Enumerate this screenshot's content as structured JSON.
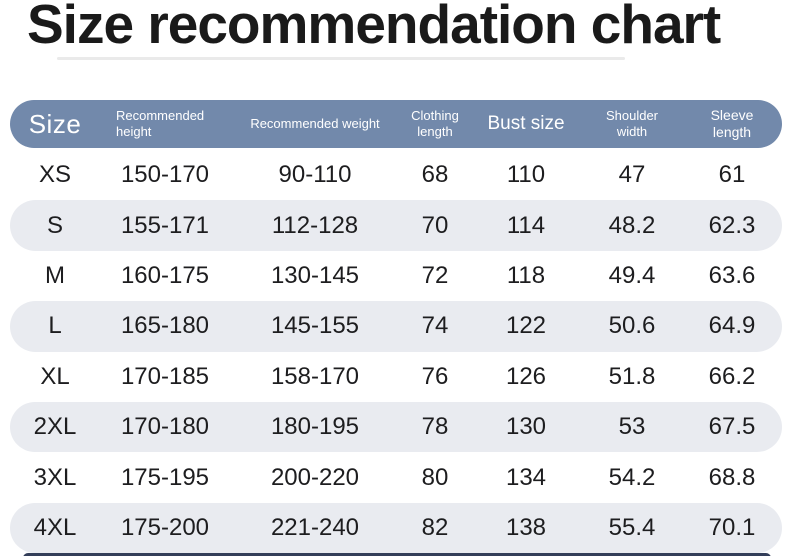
{
  "title": "Size recommendation chart",
  "chart_data": {
    "type": "table",
    "title": "Size recommendation chart",
    "columns": [
      {
        "label": "Size"
      },
      {
        "label": "Recommended height"
      },
      {
        "label": "Recommended weight"
      },
      {
        "label": "Clothing length"
      },
      {
        "label": "Bust size"
      },
      {
        "label": "Shoulder width"
      },
      {
        "label": "Sleeve length"
      }
    ],
    "rows": [
      [
        "XS",
        "150-170",
        "90-110",
        "68",
        "110",
        "47",
        "61"
      ],
      [
        "S",
        "155-171",
        "112-128",
        "70",
        "114",
        "48.2",
        "62.3"
      ],
      [
        "M",
        "160-175",
        "130-145",
        "72",
        "118",
        "49.4",
        "63.6"
      ],
      [
        "L",
        "165-180",
        "145-155",
        "74",
        "122",
        "50.6",
        "64.9"
      ],
      [
        "XL",
        "170-185",
        "158-170",
        "76",
        "126",
        "51.8",
        "66.2"
      ],
      [
        "2XL",
        "170-180",
        "180-195",
        "78",
        "130",
        "53",
        "67.5"
      ],
      [
        "3XL",
        "175-195",
        "200-220",
        "80",
        "134",
        "54.2",
        "68.8"
      ],
      [
        "4XL",
        "175-200",
        "221-240",
        "82",
        "138",
        "55.4",
        "70.1"
      ]
    ],
    "layout_hints": {
      "header_background": "#7289ab",
      "header_text_color": "#ffffff",
      "alternate_row_background": "#e9ebf0",
      "body_text_color": "#1d1d1f",
      "bottom_bar_color": "#333e59",
      "alternating_rows": "even rows white, odd rows light gray pill with rounded ends"
    }
  }
}
